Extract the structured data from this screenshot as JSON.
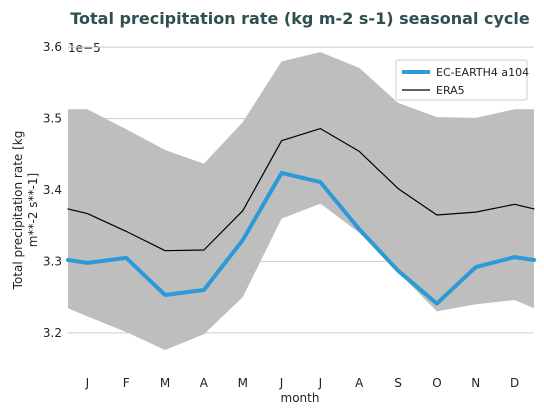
{
  "chart_data": {
    "type": "line",
    "title": "Total precipitation rate (kg m-2 s-1) seasonal cycle",
    "xlabel": "month",
    "ylabel_line1": "Total precipitation rate [kg",
    "ylabel_line2": "m**-2 s**-1]",
    "y_offset_label": "1e−5",
    "categories": [
      "J",
      "F",
      "M",
      "A",
      "M",
      "J",
      "J",
      "A",
      "S",
      "O",
      "N",
      "D"
    ],
    "xlim": [
      0.5,
      12.5
    ],
    "ylim": [
      3.155,
      3.61
    ],
    "yticks": [
      3.2,
      3.3,
      3.4,
      3.5,
      3.6
    ],
    "ytick_labels": [
      "3.2",
      "3.3",
      "3.4",
      "3.5",
      "3.6"
    ],
    "grid": "horizontal",
    "legend_position": "top-right",
    "band": {
      "upper": [
        3.513,
        3.485,
        3.456,
        3.437,
        3.495,
        3.58,
        3.593,
        3.571,
        3.522,
        3.502,
        3.501,
        3.513
      ],
      "lower": [
        3.223,
        3.201,
        3.176,
        3.198,
        3.25,
        3.36,
        3.381,
        3.34,
        3.285,
        3.23,
        3.24,
        3.246
      ],
      "color": "#bebebe"
    },
    "series": [
      {
        "name": "EC-EARTH4 a104",
        "color": "#2b9ad7",
        "values": [
          3.298,
          3.305,
          3.253,
          3.26,
          3.33,
          3.424,
          3.411,
          3.345,
          3.287,
          3.241,
          3.292,
          3.306
        ]
      },
      {
        "name": "ERA5",
        "color": "#000000",
        "values": [
          3.367,
          3.342,
          3.315,
          3.316,
          3.371,
          3.469,
          3.486,
          3.454,
          3.402,
          3.365,
          3.369,
          3.38
        ]
      }
    ]
  }
}
